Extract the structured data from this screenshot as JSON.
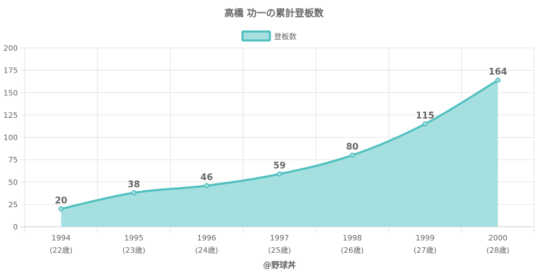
{
  "chart_data": {
    "type": "area",
    "title": "高橋 功一の累計登板数",
    "legend": {
      "label": "登板数",
      "position": "top"
    },
    "categories": [
      "1994",
      "1995",
      "1996",
      "1997",
      "1998",
      "1999",
      "2000"
    ],
    "category_sublabels": [
      "(22歳)",
      "(23歳)",
      "(24歳)",
      "(25歳)",
      "(26歳)",
      "(27歳)",
      "(28歳)"
    ],
    "series": [
      {
        "name": "登板数",
        "values": [
          20,
          38,
          46,
          59,
          80,
          115,
          164
        ]
      }
    ],
    "ylim": [
      0,
      200
    ],
    "yticks": [
      0,
      25,
      50,
      75,
      100,
      125,
      150,
      175,
      200
    ],
    "grid": true,
    "colors": {
      "line": "#4fbfbf",
      "fill": "#a6dfdf",
      "grid": "#e5e5e5",
      "text": "#666666"
    },
    "credit": "@野球丼"
  }
}
